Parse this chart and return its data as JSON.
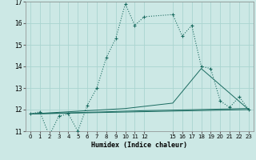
{
  "xlabel": "Humidex (Indice chaleur)",
  "bg_color": "#cce8e5",
  "grid_color": "#aad4d0",
  "line_color": "#1a6b60",
  "xlim": [
    -0.5,
    23.5
  ],
  "ylim": [
    11,
    17
  ],
  "yticks": [
    11,
    12,
    13,
    14,
    15,
    16,
    17
  ],
  "xticks": [
    0,
    1,
    2,
    3,
    4,
    5,
    6,
    7,
    8,
    9,
    10,
    11,
    12,
    15,
    16,
    17,
    18,
    19,
    20,
    21,
    22,
    23
  ],
  "series1_x": [
    0,
    1,
    2,
    3,
    4,
    5,
    6,
    7,
    8,
    9,
    10,
    11,
    12,
    15,
    16,
    17,
    18,
    19,
    20,
    21,
    22,
    23
  ],
  "series1_y": [
    11.8,
    11.9,
    10.8,
    11.7,
    11.8,
    11.0,
    12.2,
    13.0,
    14.4,
    15.3,
    16.9,
    15.9,
    16.3,
    16.4,
    15.4,
    15.9,
    14.0,
    13.9,
    12.4,
    12.1,
    12.6,
    12.0
  ],
  "series2_x": [
    0,
    23
  ],
  "series2_y": [
    11.8,
    12.0
  ],
  "series3_x": [
    0,
    12,
    23
  ],
  "series3_y": [
    11.8,
    11.95,
    12.05
  ],
  "series4_x": [
    0,
    10,
    15,
    18,
    23
  ],
  "series4_y": [
    11.8,
    12.05,
    12.3,
    13.9,
    12.0
  ]
}
